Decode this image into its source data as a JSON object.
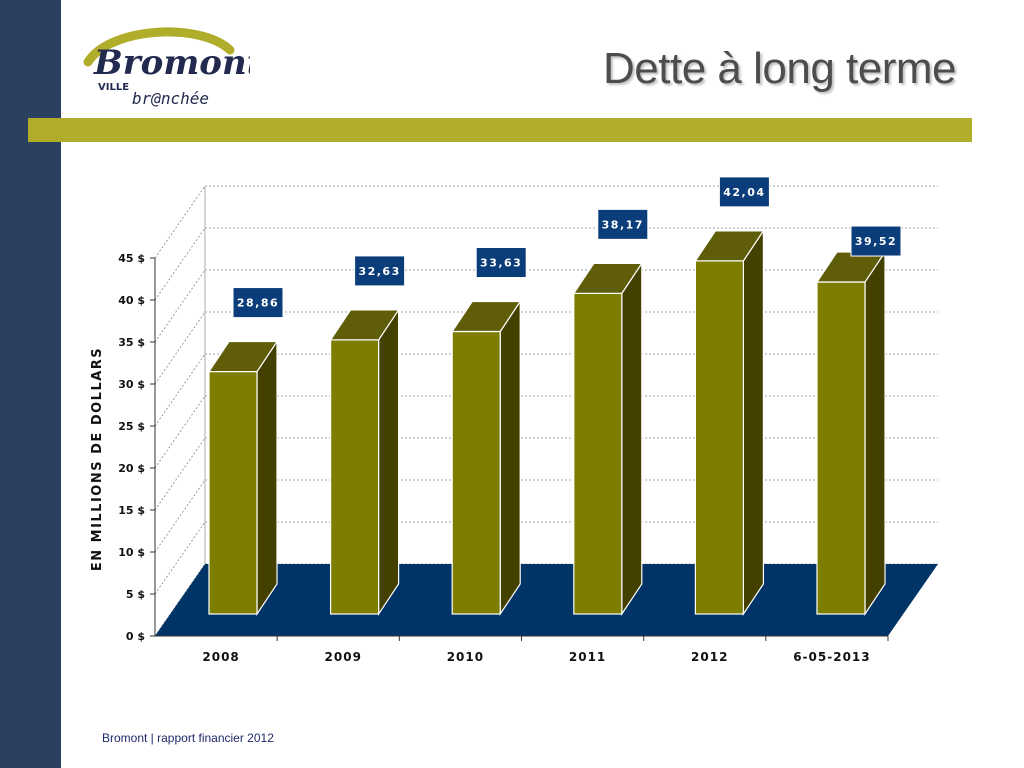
{
  "header": {
    "title": "Dette à long terme",
    "logo_main": "Bromont",
    "logo_ville": "VILLE",
    "logo_tagline": "br@nchée"
  },
  "footer": {
    "text": "Bromont | rapport financier 2012"
  },
  "colors": {
    "left_bar": "#2b3f60",
    "accent_bar": "#b0ad2b",
    "bar_front": "#7d7d00",
    "bar_top": "#5f5d08",
    "bar_side": "#444000",
    "floor": "#003366",
    "label_box": "#0b3d7a"
  },
  "chart_data": {
    "type": "bar",
    "categories": [
      "2008",
      "2009",
      "2010",
      "2011",
      "2012",
      "6-05-2013"
    ],
    "values": [
      28.86,
      32.63,
      33.63,
      38.17,
      42.04,
      39.52
    ],
    "data_labels": [
      "28,86",
      "32,63",
      "33,63",
      "38,17",
      "42,04",
      "39,52"
    ],
    "ylabel": "EN MILLIONS DE DOLLARS",
    "yticks": [
      0,
      5,
      10,
      15,
      20,
      25,
      30,
      35,
      40,
      45
    ],
    "ytick_labels": [
      "0 $",
      "5 $",
      "10 $",
      "15 $",
      "20 $",
      "25 $",
      "30 $",
      "35 $",
      "40 $",
      "45 $"
    ],
    "ylim": [
      0,
      45
    ],
    "grid": true,
    "style": "3d-bar"
  }
}
